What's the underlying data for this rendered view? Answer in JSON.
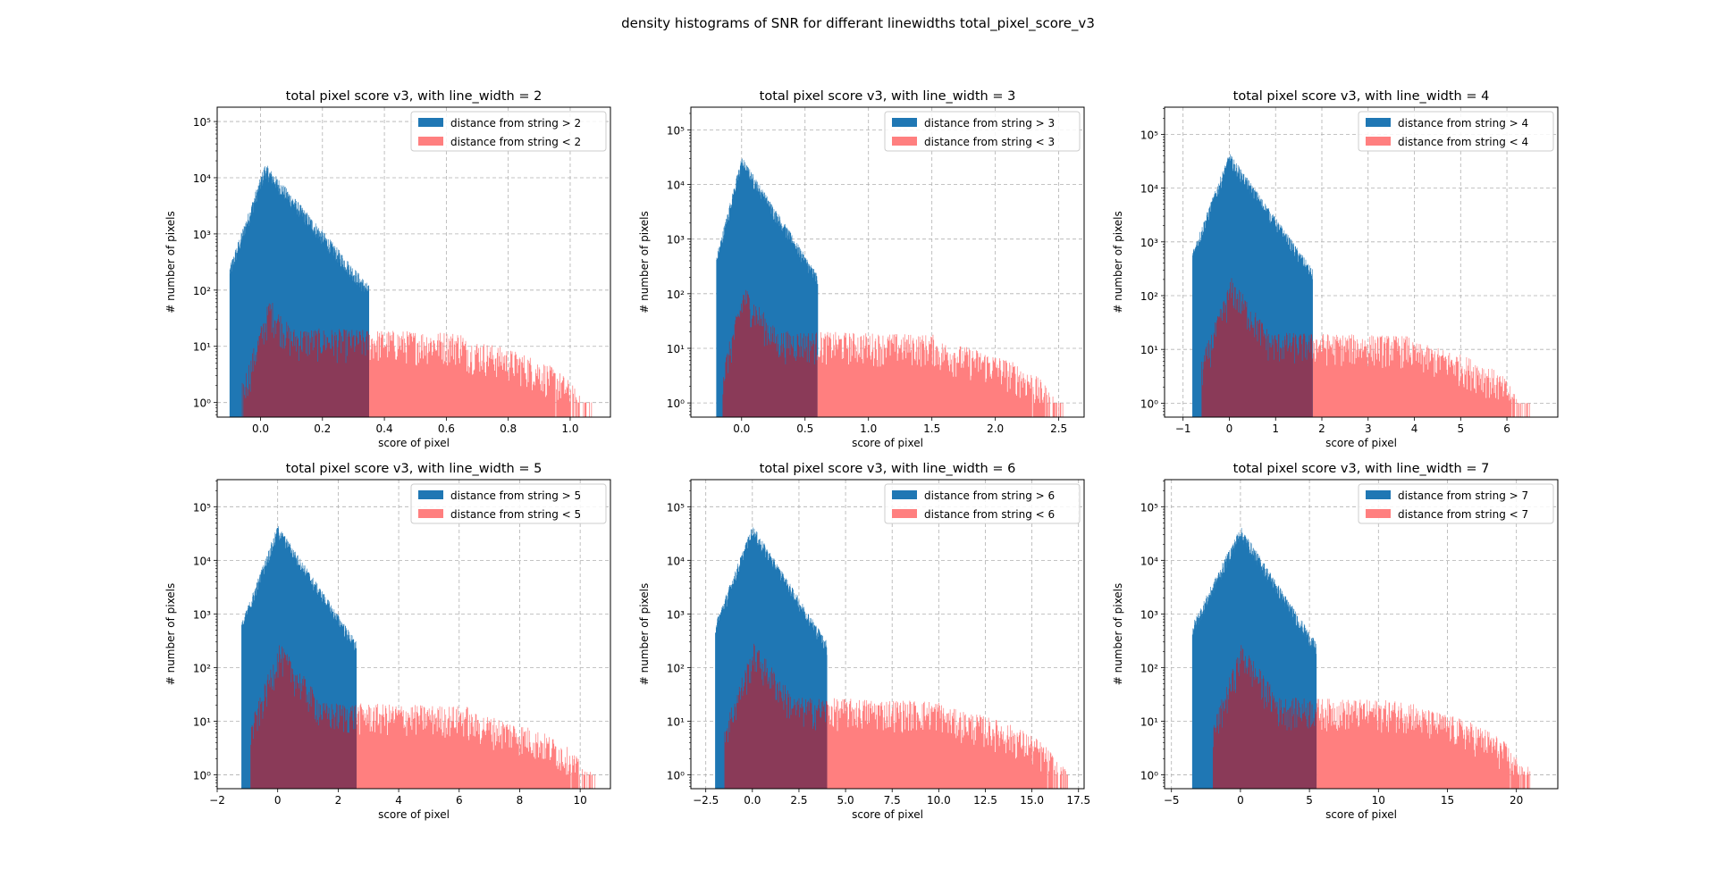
{
  "figure": {
    "title": "density histograms of SNR for differant linewidths total_pixel_score_v3"
  },
  "colors": {
    "background_far": "#1f77b4",
    "near_string": "#ff7f7f",
    "overlap": "#8a3a58",
    "grid": "#b0b0b0"
  },
  "chart_data": [
    {
      "type": "histogram",
      "yscale": "log",
      "grid": true,
      "legend_position": "upper-right",
      "title": "total pixel score v3, with line_width = 2",
      "xlabel": "score of pixel",
      "ylabel": "# number of pixels",
      "xlim": [
        -0.14,
        1.13
      ],
      "ylim": [
        0.55,
        180000
      ],
      "xticks": [
        0.0,
        0.2,
        0.4,
        0.6,
        0.8,
        1.0
      ],
      "xtick_labels": [
        "0.0",
        "0.2",
        "0.4",
        "0.6",
        "0.8",
        "1.0"
      ],
      "yticks": [
        1,
        10,
        100,
        1000,
        10000,
        100000
      ],
      "ytick_labels": [
        "10⁰",
        "10¹",
        "10²",
        "10³",
        "10⁴",
        "10⁵"
      ],
      "series": [
        {
          "name": "distance from string > 2",
          "color": "#1f77b4",
          "peak_x": 0.015,
          "peak_count": 14000,
          "left_extent": -0.1,
          "right_extent": 0.35
        },
        {
          "name": "distance from string < 2",
          "color": "#ff7f7f",
          "peak_x": 0.03,
          "peak_count": 50,
          "plateau_count": 15,
          "left_extent": -0.06,
          "right_extent": 1.07
        }
      ]
    },
    {
      "type": "histogram",
      "yscale": "log",
      "grid": true,
      "legend_position": "upper-right",
      "title": "total pixel score v3, with line_width = 3",
      "xlabel": "score of pixel",
      "ylabel": "# number of pixels",
      "xlim": [
        -0.4,
        2.7
      ],
      "ylim": [
        0.55,
        260000
      ],
      "xticks": [
        0.0,
        0.5,
        1.0,
        1.5,
        2.0,
        2.5
      ],
      "xtick_labels": [
        "0.0",
        "0.5",
        "1.0",
        "1.5",
        "2.0",
        "2.5"
      ],
      "yticks": [
        1,
        10,
        100,
        1000,
        10000,
        100000
      ],
      "ytick_labels": [
        "10⁰",
        "10¹",
        "10²",
        "10³",
        "10⁴",
        "10⁵"
      ],
      "series": [
        {
          "name": "distance from string > 3",
          "color": "#1f77b4",
          "peak_x": 0.0,
          "peak_count": 25000,
          "left_extent": -0.2,
          "right_extent": 0.6
        },
        {
          "name": "distance from string < 3",
          "color": "#ff7f7f",
          "peak_x": 0.02,
          "peak_count": 100,
          "plateau_count": 15,
          "left_extent": -0.15,
          "right_extent": 2.55
        }
      ]
    },
    {
      "type": "histogram",
      "yscale": "log",
      "grid": true,
      "legend_position": "upper-right",
      "title": "total pixel score v3, with line_width = 4",
      "xlabel": "score of pixel",
      "ylabel": "# number of pixels",
      "xlim": [
        -1.4,
        7.1
      ],
      "ylim": [
        0.55,
        320000
      ],
      "xticks": [
        -1,
        0,
        1,
        2,
        3,
        4,
        5,
        6
      ],
      "xtick_labels": [
        "−1",
        "0",
        "1",
        "2",
        "3",
        "4",
        "5",
        "6"
      ],
      "yticks": [
        1,
        10,
        100,
        1000,
        10000,
        100000
      ],
      "ytick_labels": [
        "10⁰",
        "10¹",
        "10²",
        "10³",
        "10⁴",
        "10⁵"
      ],
      "series": [
        {
          "name": "distance from string > 4",
          "color": "#1f77b4",
          "peak_x": 0.0,
          "peak_count": 35000,
          "left_extent": -0.8,
          "right_extent": 1.8
        },
        {
          "name": "distance from string < 4",
          "color": "#ff7f7f",
          "peak_x": 0.05,
          "peak_count": 150,
          "plateau_count": 15,
          "left_extent": -0.6,
          "right_extent": 6.5
        }
      ]
    },
    {
      "type": "histogram",
      "yscale": "log",
      "grid": true,
      "legend_position": "upper-right",
      "title": "total pixel score v3, with line_width = 5",
      "xlabel": "score of pixel",
      "ylabel": "# number of pixels",
      "xlim": [
        -2.0,
        11.0
      ],
      "ylim": [
        0.55,
        320000
      ],
      "xticks": [
        -2,
        0,
        2,
        4,
        6,
        8,
        10
      ],
      "xtick_labels": [
        "−2",
        "0",
        "2",
        "4",
        "6",
        "8",
        "10"
      ],
      "yticks": [
        1,
        10,
        100,
        1000,
        10000,
        100000
      ],
      "ytick_labels": [
        "10⁰",
        "10¹",
        "10²",
        "10³",
        "10⁴",
        "10⁵"
      ],
      "series": [
        {
          "name": "distance from string > 5",
          "color": "#1f77b4",
          "peak_x": 0.0,
          "peak_count": 35000,
          "left_extent": -1.2,
          "right_extent": 2.6
        },
        {
          "name": "distance from string < 5",
          "color": "#ff7f7f",
          "peak_x": 0.05,
          "peak_count": 200,
          "plateau_count": 16,
          "left_extent": -0.9,
          "right_extent": 10.5
        }
      ]
    },
    {
      "type": "histogram",
      "yscale": "log",
      "grid": true,
      "legend_position": "upper-right",
      "title": "total pixel score v3, with line_width = 6",
      "xlabel": "score of pixel",
      "ylabel": "# number of pixels",
      "xlim": [
        -3.3,
        17.8
      ],
      "ylim": [
        0.55,
        320000
      ],
      "xticks": [
        -2.5,
        0.0,
        2.5,
        5.0,
        7.5,
        10.0,
        12.5,
        15.0,
        17.5
      ],
      "xtick_labels": [
        "−2.5",
        "0.0",
        "2.5",
        "5.0",
        "7.5",
        "10.0",
        "12.5",
        "15.0",
        "17.5"
      ],
      "yticks": [
        1,
        10,
        100,
        1000,
        10000,
        100000
      ],
      "ytick_labels": [
        "10⁰",
        "10¹",
        "10²",
        "10³",
        "10⁴",
        "10⁵"
      ],
      "series": [
        {
          "name": "distance from string > 6",
          "color": "#1f77b4",
          "peak_x": 0.0,
          "peak_count": 35000,
          "left_extent": -2.0,
          "right_extent": 4.0
        },
        {
          "name": "distance from string < 6",
          "color": "#ff7f7f",
          "peak_x": 0.1,
          "peak_count": 200,
          "plateau_count": 20,
          "left_extent": -1.5,
          "right_extent": 17.0
        }
      ]
    },
    {
      "type": "histogram",
      "yscale": "log",
      "grid": true,
      "legend_position": "upper-right",
      "title": "total pixel score v3, with line_width = 7",
      "xlabel": "score of pixel",
      "ylabel": "# number of pixels",
      "xlim": [
        -5.5,
        23.0
      ],
      "ylim": [
        0.55,
        320000
      ],
      "xticks": [
        -5,
        0,
        5,
        10,
        15,
        20
      ],
      "xtick_labels": [
        "−5",
        "0",
        "5",
        "10",
        "15",
        "20"
      ],
      "yticks": [
        1,
        10,
        100,
        1000,
        10000,
        100000
      ],
      "ytick_labels": [
        "10⁰",
        "10¹",
        "10²",
        "10³",
        "10⁴",
        "10⁵"
      ],
      "series": [
        {
          "name": "distance from string > 7",
          "color": "#1f77b4",
          "peak_x": 0.0,
          "peak_count": 33000,
          "left_extent": -3.5,
          "right_extent": 5.5
        },
        {
          "name": "distance from string < 7",
          "color": "#ff7f7f",
          "peak_x": 0.1,
          "peak_count": 200,
          "plateau_count": 20,
          "left_extent": -2.0,
          "right_extent": 21.0
        }
      ]
    }
  ]
}
